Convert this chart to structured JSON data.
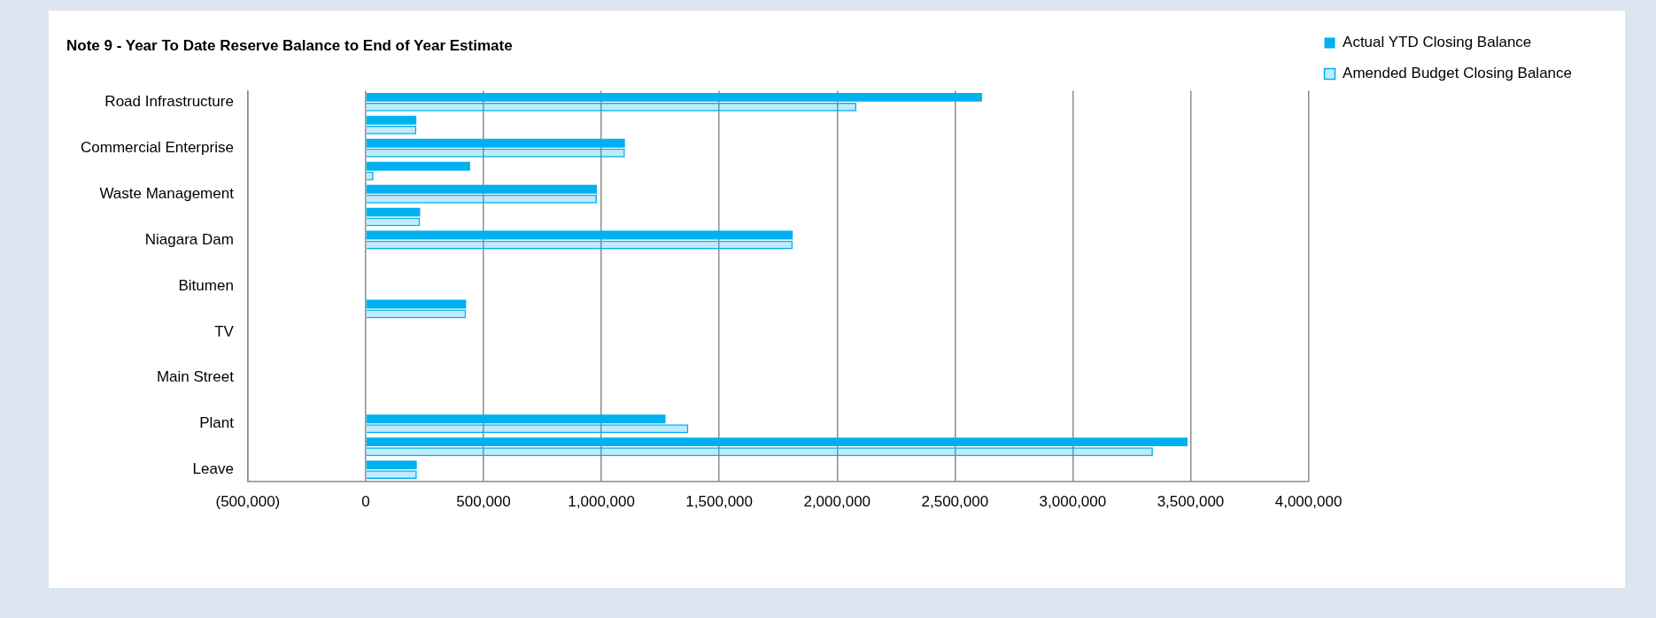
{
  "chart_data": {
    "type": "bar",
    "orientation": "horizontal",
    "title": "Note 9 - Year To Date Reserve Balance to End of Year Estimate",
    "categories": [
      "Road Infrastructure",
      null,
      "Commercial Enterprise",
      null,
      "Waste Management",
      null,
      "Niagara Dam",
      null,
      "Bitumen",
      null,
      "TV",
      null,
      "Main Street",
      null,
      "Plant",
      null,
      "Leave"
    ],
    "series": [
      {
        "name": "Actual YTD Closing Balance",
        "color": "#00b0f0",
        "values": [
          2615000,
          215000,
          1100000,
          443000,
          981000,
          231000,
          1812000,
          null,
          null,
          426000,
          null,
          null,
          null,
          null,
          1272000,
          3487000,
          217000
        ]
      },
      {
        "name": "Amended Budget Closing Balance",
        "color": "#00b0f0",
        "values": [
          2082000,
          215000,
          1100000,
          33000,
          981000,
          231000,
          1812000,
          null,
          null,
          426000,
          null,
          null,
          null,
          null,
          1369000,
          3340000,
          217000
        ]
      }
    ],
    "xlim": [
      -500000,
      4000000
    ],
    "xticks": [
      {
        "value": -500000,
        "label": "(500,000)"
      },
      {
        "value": 0,
        "label": "0"
      },
      {
        "value": 500000,
        "label": "500,000"
      },
      {
        "value": 1000000,
        "label": "1,000,000"
      },
      {
        "value": 1500000,
        "label": "1,500,000"
      },
      {
        "value": 2000000,
        "label": "2,000,000"
      },
      {
        "value": 2500000,
        "label": "2,500,000"
      },
      {
        "value": 3000000,
        "label": "3,000,000"
      },
      {
        "value": 3500000,
        "label": "3,500,000"
      },
      {
        "value": 4000000,
        "label": "4,000,000"
      }
    ],
    "grid": "x",
    "legend": "top right"
  }
}
